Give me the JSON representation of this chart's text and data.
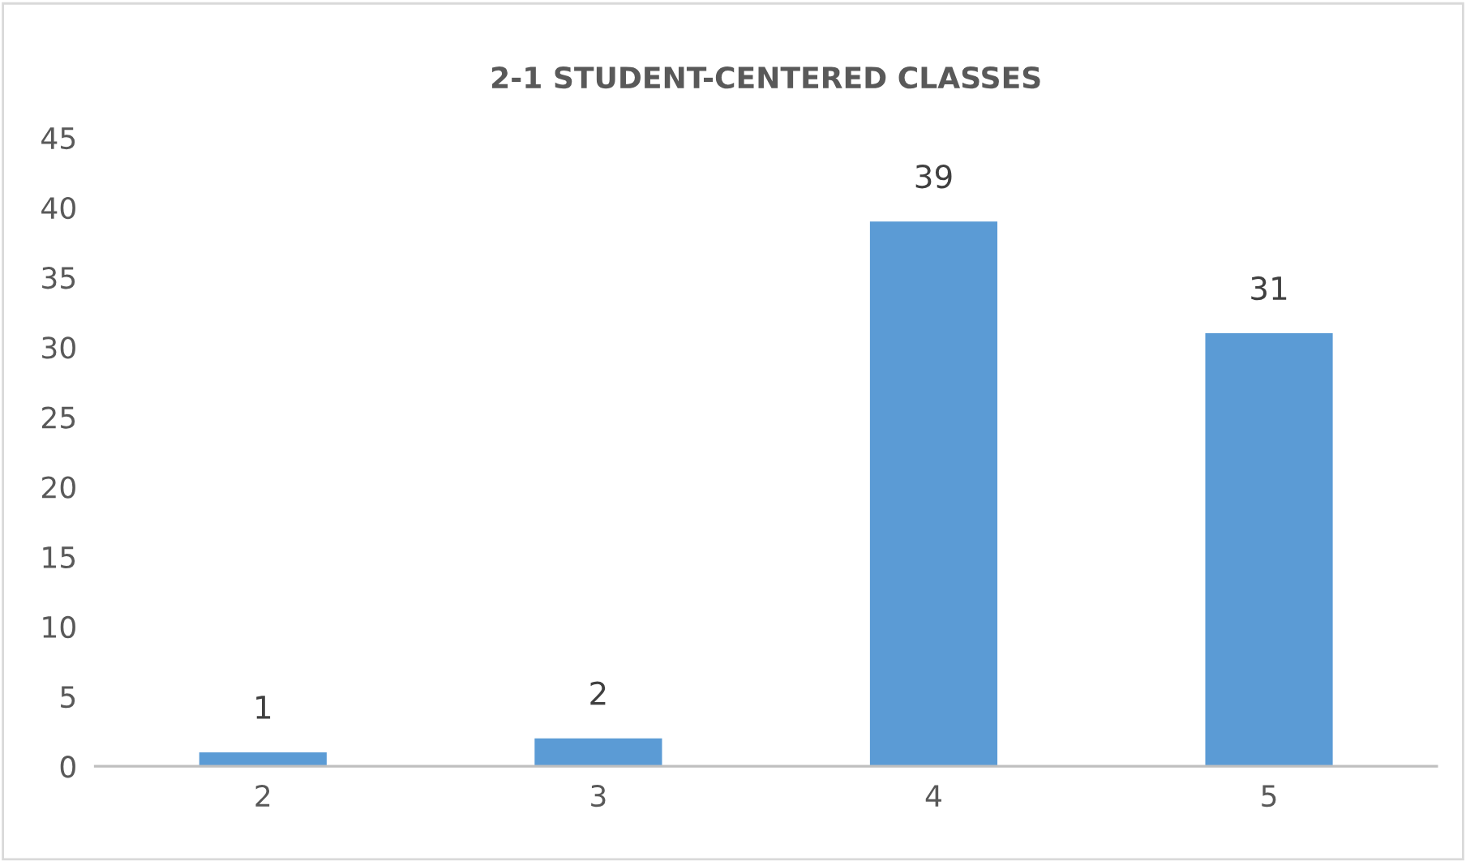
{
  "chart_data": {
    "type": "bar",
    "title": "2-1 STUDENT-CENTERED CLASSES",
    "categories": [
      "2",
      "3",
      "4",
      "5"
    ],
    "values": [
      1,
      2,
      39,
      31
    ],
    "color": "#5b9bd5",
    "ylim": [
      0,
      45
    ],
    "yticks": [
      0,
      5,
      10,
      15,
      20,
      25,
      30,
      35,
      40,
      45
    ],
    "data_labels": true,
    "grid": false
  }
}
